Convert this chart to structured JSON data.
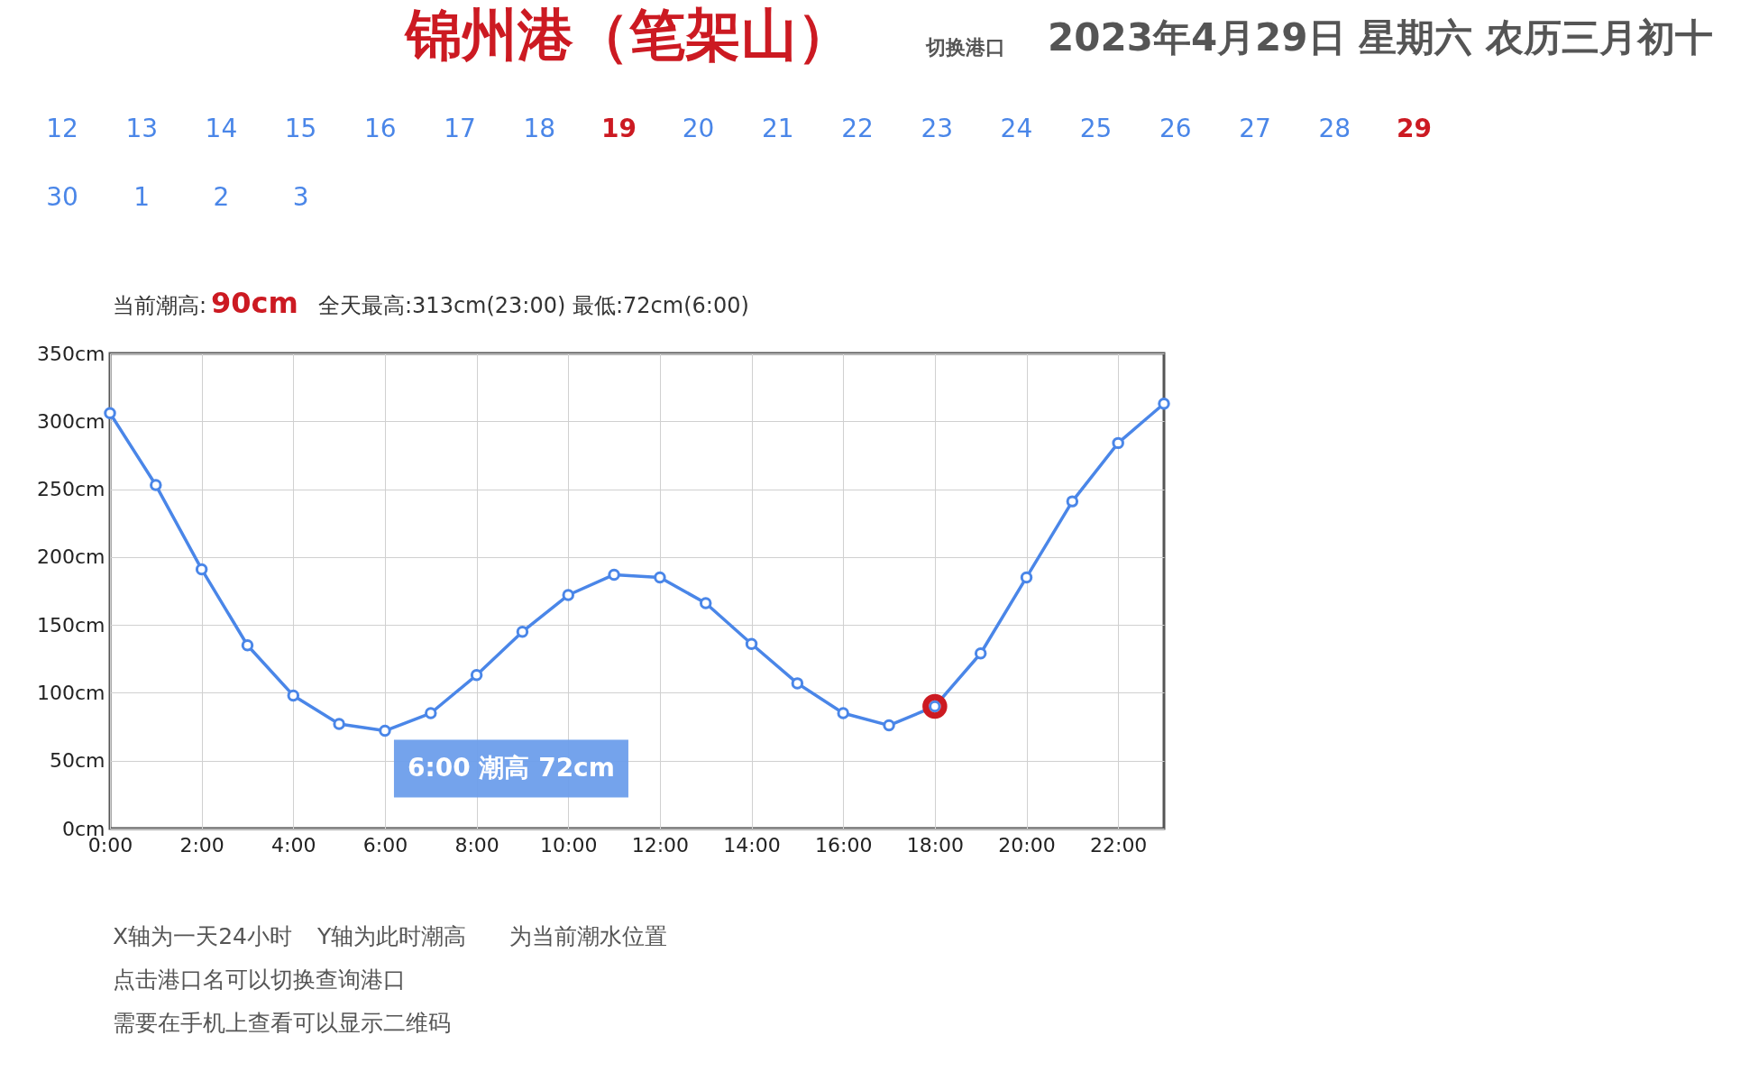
{
  "chart_data": {
    "type": "line",
    "title": "锦州港（笔架山）",
    "subtitle": "2023年4月29日 星期六 农历三月初十",
    "x": [
      0,
      1,
      2,
      3,
      4,
      5,
      6,
      7,
      8,
      9,
      10,
      11,
      12,
      13,
      14,
      15,
      16,
      17,
      18,
      19,
      20,
      21,
      22,
      23
    ],
    "series": [
      {
        "color": "#4a86e8",
        "marker": "circle",
        "values": [
          306,
          253,
          191,
          135,
          98,
          77,
          72,
          85,
          113,
          145,
          172,
          187,
          185,
          166,
          136,
          107,
          85,
          76,
          90,
          129,
          185,
          241,
          284,
          313
        ]
      },
      {
        "type": "scatter",
        "color": "#cc1a22",
        "x": [
          18
        ],
        "values": [
          90
        ]
      }
    ],
    "xlim": [
      0,
      23
    ],
    "ylim": [
      0,
      350
    ],
    "xticks": [
      {
        "value": 0,
        "label": "0:00"
      },
      {
        "value": 2,
        "label": "2:00"
      },
      {
        "value": 4,
        "label": "4:00"
      },
      {
        "value": 6,
        "label": "6:00"
      },
      {
        "value": 8,
        "label": "8:00"
      },
      {
        "value": 10,
        "label": "10:00"
      },
      {
        "value": 12,
        "label": "12:00"
      },
      {
        "value": 14,
        "label": "14:00"
      },
      {
        "value": 16,
        "label": "16:00"
      },
      {
        "value": 18,
        "label": "18:00"
      },
      {
        "value": 20,
        "label": "20:00"
      },
      {
        "value": 22,
        "label": "22:00"
      }
    ],
    "yticks": [
      {
        "value": 0,
        "label": "0cm"
      },
      {
        "value": 50,
        "label": "50cm"
      },
      {
        "value": 100,
        "label": "100cm"
      },
      {
        "value": 150,
        "label": "150cm"
      },
      {
        "value": 200,
        "label": "200cm"
      },
      {
        "value": 250,
        "label": "250cm"
      },
      {
        "value": 300,
        "label": "300cm"
      },
      {
        "value": 350,
        "label": "350cm"
      }
    ],
    "grid": true,
    "annotations": [
      "切换港口",
      "12",
      "13",
      "14",
      "15",
      "16",
      "17",
      "18",
      "19",
      "20",
      "21",
      "22",
      "23",
      "24",
      "25",
      "26",
      "27",
      "28",
      "29",
      "30",
      "1",
      "2",
      "3",
      "当前潮高:",
      "90cm",
      "全天最高:313cm(23:00) 最低:72cm(6:00)",
      {
        "text": "6:00 潮高 72cm",
        "x": 6,
        "y": 72
      },
      "X轴为一天24小时",
      "Y轴为此时潮高",
      "为当前潮水位置",
      "点击港口名可以切换查询港口",
      "需要在手机上查看可以显示二维码"
    ]
  }
}
